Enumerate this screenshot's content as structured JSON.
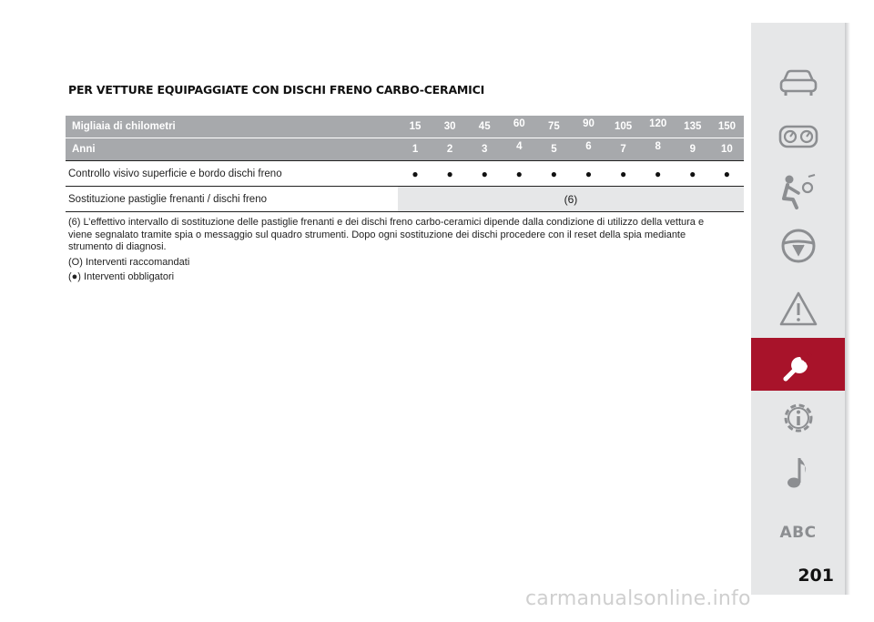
{
  "section_title": "PER VETTURE EQUIPAGGIATE CON DISCHI FRENO CARBO-CERAMICI",
  "table": {
    "km_label": "Migliaia di chilometri",
    "km_values": [
      "15",
      "30",
      "45",
      "60",
      "75",
      "90",
      "105",
      "120",
      "135",
      "150"
    ],
    "years_label": "Anni",
    "years_values": [
      "1",
      "2",
      "3",
      "4",
      "5",
      "6",
      "7",
      "8",
      "9",
      "10"
    ],
    "rows": [
      {
        "label": "Controllo visivo superficie e bordo dischi freno",
        "marks": [
          "●",
          "●",
          "●",
          "●",
          "●",
          "●",
          "●",
          "●",
          "●",
          "●"
        ]
      },
      {
        "label": "Sostituzione pastiglie frenanti / dischi freno",
        "span_value": "(6)"
      }
    ]
  },
  "notes": {
    "footnote_6": "(6) L’effettivo intervallo di sostituzione delle pastiglie frenanti e dei dischi freno carbo-ceramici dipende dalla condizione di utilizzo della vettura e viene segnalato tramite spia o messaggio sul quadro strumenti. Dopo ogni sostituzione dei dischi procedere con il reset della spia mediante strumento di diagnosi.",
    "recommended": "(O) Interventi raccomandati",
    "mandatory": "(●) Interventi obbligatori"
  },
  "sidebar": {
    "items": [
      {
        "icon": "car-icon"
      },
      {
        "icon": "dashboard-icon"
      },
      {
        "icon": "airbag-seat-icon"
      },
      {
        "icon": "steering-wheel-icon"
      },
      {
        "icon": "warning-triangle-icon"
      },
      {
        "icon": "wrench-icon",
        "active": true
      },
      {
        "icon": "technical-data-gear-icon"
      },
      {
        "icon": "music-note-icon"
      },
      {
        "icon": "alphabetical-index-icon",
        "label": "ABC"
      }
    ],
    "active_color": "#a8132a",
    "background_color": "#e6e7e8"
  },
  "page_number": "201",
  "watermark": "carmanualsonline.info"
}
